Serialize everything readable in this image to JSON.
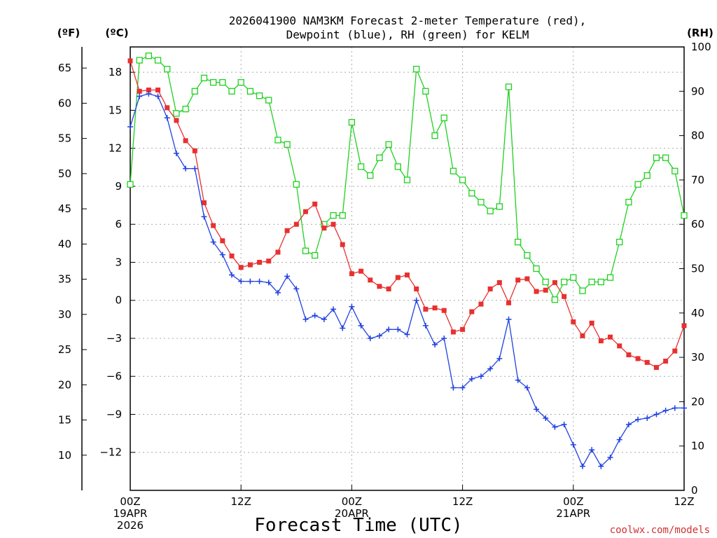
{
  "chart_data": {
    "type": "line",
    "title_line1": "2026041900 NAM3KM Forecast 2-meter Temperature (red),",
    "title_line2": "Dewpoint (blue), RH (green) for KELM",
    "xlabel": "Forecast Time (UTC)",
    "credit": "coolwx.com/models",
    "units": {
      "fahrenheit": "(ºF)",
      "celsius": "(ºC)",
      "rh": "(RH)"
    },
    "x_range_hours": [
      0,
      60
    ],
    "celsius_range": [
      -15,
      20
    ],
    "rh_range": [
      0,
      100
    ],
    "fahrenheit_ticks": [
      "65",
      "60",
      "55",
      "50",
      "45",
      "40",
      "35",
      "30",
      "25",
      "20",
      "15",
      "10"
    ],
    "fahrenheit_tick_values": [
      65,
      60,
      55,
      50,
      45,
      40,
      35,
      30,
      25,
      20,
      15,
      10
    ],
    "celsius_ticks": [
      "18",
      "15",
      "12",
      "9",
      "6",
      "3",
      "0",
      "−3",
      "−6",
      "−9",
      "−12"
    ],
    "celsius_tick_values": [
      18,
      15,
      12,
      9,
      6,
      3,
      0,
      -3,
      -6,
      -9,
      -12
    ],
    "rh_ticks": [
      "100",
      "90",
      "80",
      "70",
      "60",
      "50",
      "40",
      "30",
      "20",
      "10",
      "0"
    ],
    "rh_tick_values": [
      100,
      90,
      80,
      70,
      60,
      50,
      40,
      30,
      20,
      10,
      0
    ],
    "x_ticks": [
      {
        "hour": 0,
        "line1": "00Z",
        "line2": "19APR",
        "line3": "2026"
      },
      {
        "hour": 12,
        "line1": "12Z",
        "line2": "",
        "line3": ""
      },
      {
        "hour": 24,
        "line1": "00Z",
        "line2": "20APR",
        "line3": ""
      },
      {
        "hour": 36,
        "line1": "12Z",
        "line2": "",
        "line3": ""
      },
      {
        "hour": 48,
        "line1": "00Z",
        "line2": "21APR",
        "line3": ""
      },
      {
        "hour": 60,
        "line1": "12Z",
        "line2": "",
        "line3": ""
      }
    ],
    "series": [
      {
        "name": "Temperature",
        "unit": "C",
        "color": "#e83030",
        "marker": "filled-square",
        "values": [
          18.9,
          16.5,
          16.6,
          16.6,
          15.2,
          14.2,
          12.6,
          11.8,
          7.7,
          5.9,
          4.7,
          3.5,
          2.6,
          2.8,
          3.0,
          3.1,
          3.8,
          5.5,
          6.0,
          7.0,
          7.6,
          5.7,
          6.0,
          4.4,
          2.1,
          2.3,
          1.6,
          1.1,
          0.9,
          1.8,
          2.0,
          0.9,
          -0.7,
          -0.6,
          -0.8,
          -2.5,
          -2.3,
          -0.9,
          -0.3,
          0.9,
          1.4,
          -0.2,
          1.6,
          1.7,
          0.7,
          0.8,
          1.4,
          0.3,
          -1.7,
          -2.8,
          -1.8,
          -3.2,
          -2.9,
          -3.6,
          -4.3,
          -4.6,
          -4.9,
          -5.3,
          -4.8,
          -4.0,
          -2.0
        ]
      },
      {
        "name": "Dewpoint",
        "unit": "C",
        "color": "#2040e0",
        "marker": "plus",
        "values": [
          13.7,
          16.1,
          16.3,
          16.1,
          14.4,
          11.6,
          10.4,
          10.4,
          6.6,
          4.6,
          3.6,
          2.0,
          1.5,
          1.5,
          1.5,
          1.4,
          0.6,
          1.9,
          0.9,
          -1.5,
          -1.2,
          -1.5,
          -0.7,
          -2.2,
          -0.5,
          -2.0,
          -3.0,
          -2.8,
          -2.3,
          -2.3,
          -2.7,
          0.0,
          -2.0,
          -3.5,
          -3.0,
          -6.9,
          -6.9,
          -6.2,
          -6.0,
          -5.4,
          -4.6,
          -1.5,
          -6.3,
          -6.9,
          -8.6,
          -9.3,
          -10.0,
          -9.8,
          -11.4,
          -13.1,
          -11.8,
          -13.1,
          -12.4,
          -11.0,
          -9.8,
          -9.4,
          -9.3,
          -9.0,
          -8.7,
          -8.5,
          -8.5
        ]
      },
      {
        "name": "RH",
        "unit": "%",
        "color": "#20d020",
        "marker": "open-square",
        "values": [
          69,
          97,
          98,
          97,
          95,
          85,
          86,
          90,
          93,
          92,
          92,
          90,
          92,
          90,
          89,
          88,
          79,
          78,
          69,
          54,
          53,
          60,
          62,
          62,
          83,
          73,
          71,
          75,
          78,
          73,
          70,
          95,
          90,
          80,
          84,
          72,
          70,
          67,
          65,
          63,
          64,
          91,
          56,
          53,
          50,
          47,
          43,
          47,
          48,
          45,
          47,
          47,
          48,
          56,
          65,
          69,
          71,
          75,
          75,
          72,
          62
        ]
      }
    ]
  }
}
